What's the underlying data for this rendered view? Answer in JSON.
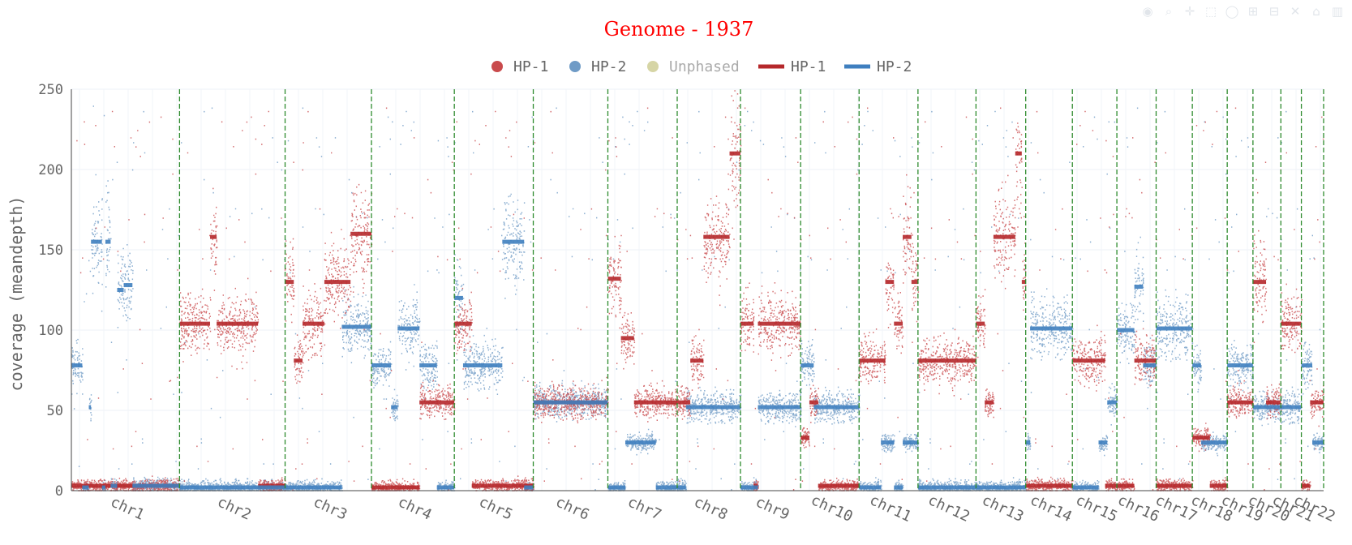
{
  "modebar": {
    "items": [
      {
        "name": "camera-icon",
        "glyph": "◉"
      },
      {
        "name": "zoom-icon",
        "glyph": "⌕"
      },
      {
        "name": "pan-icon",
        "glyph": "✛"
      },
      {
        "name": "box-select-icon",
        "glyph": "⬚"
      },
      {
        "name": "lasso-select-icon",
        "glyph": "◯"
      },
      {
        "name": "zoom-in-icon",
        "glyph": "⊞"
      },
      {
        "name": "zoom-out-icon",
        "glyph": "⊟"
      },
      {
        "name": "autoscale-icon",
        "glyph": "✕"
      },
      {
        "name": "reset-axes-icon",
        "glyph": "⌂"
      },
      {
        "name": "plotly-logo-icon",
        "glyph": "▥"
      }
    ]
  },
  "chart_data": {
    "type": "scatter",
    "title": "Genome - 1937",
    "title_color": "#ff0000",
    "ylabel": "coverage (meandepth)",
    "xlabel": "",
    "ylim": [
      0,
      250
    ],
    "yticks": [
      0,
      50,
      100,
      150,
      200,
      250
    ],
    "grid": true,
    "legend_position": "top-center",
    "legend": [
      {
        "label": "HP-1",
        "kind": "marker",
        "color": "#c94a4c"
      },
      {
        "label": "HP-2",
        "kind": "marker",
        "color": "#6f9bc6"
      },
      {
        "label": "Unphased",
        "kind": "marker",
        "color": "#d6d5a5",
        "muted": true
      },
      {
        "label": "HP-1",
        "kind": "line",
        "color": "#b5282b"
      },
      {
        "label": "HP-2",
        "kind": "line",
        "color": "#3f7fbf"
      }
    ],
    "series_colors": {
      "hp1_points": "#c94a4c",
      "hp2_points": "#6f9bc6",
      "hp1_segments": "#b5282b",
      "hp2_segments": "#3f7fbf",
      "boundary": "#2e8b2e"
    },
    "chromosomes": [
      {
        "name": "chr1",
        "length_mb": 248,
        "hp1": [
          [
            0,
            248,
            3
          ]
        ],
        "hp2": [
          [
            0,
            25,
            78
          ],
          [
            25,
            40,
            2
          ],
          [
            40,
            45,
            52
          ],
          [
            45,
            70,
            155
          ],
          [
            70,
            78,
            2
          ],
          [
            78,
            90,
            155
          ],
          [
            90,
            105,
            3
          ],
          [
            105,
            120,
            125
          ],
          [
            120,
            140,
            128
          ],
          [
            140,
            248,
            3
          ]
        ]
      },
      {
        "name": "chr2",
        "length_mb": 242,
        "hp1": [
          [
            0,
            70,
            104
          ],
          [
            70,
            85,
            158
          ],
          [
            85,
            180,
            104
          ],
          [
            180,
            242,
            3
          ]
        ],
        "hp2": [
          [
            0,
            242,
            2
          ]
        ]
      },
      {
        "name": "chr3",
        "length_mb": 198,
        "hp1": [
          [
            0,
            20,
            130
          ],
          [
            20,
            40,
            81
          ],
          [
            40,
            90,
            104
          ],
          [
            90,
            150,
            130
          ],
          [
            150,
            198,
            160
          ]
        ],
        "hp2": [
          [
            0,
            130,
            2
          ],
          [
            130,
            198,
            102
          ]
        ]
      },
      {
        "name": "chr4",
        "length_mb": 190,
        "hp1": [
          [
            0,
            110,
            2
          ],
          [
            110,
            190,
            55
          ]
        ],
        "hp2": [
          [
            0,
            45,
            78
          ],
          [
            45,
            60,
            52
          ],
          [
            60,
            110,
            101
          ],
          [
            110,
            150,
            78
          ],
          [
            150,
            190,
            2
          ]
        ]
      },
      {
        "name": "chr5",
        "length_mb": 181,
        "hp1": [
          [
            0,
            40,
            104
          ],
          [
            40,
            181,
            3
          ]
        ],
        "hp2": [
          [
            0,
            20,
            120
          ],
          [
            20,
            110,
            78
          ],
          [
            110,
            160,
            155
          ],
          [
            160,
            181,
            2
          ]
        ]
      },
      {
        "name": "chr6",
        "length_mb": 171,
        "hp1": [
          [
            0,
            171,
            55
          ]
        ],
        "hp2": [
          [
            0,
            171,
            55
          ]
        ]
      },
      {
        "name": "chr7",
        "length_mb": 159,
        "hp1": [
          [
            0,
            30,
            132
          ],
          [
            30,
            60,
            95
          ],
          [
            60,
            159,
            55
          ]
        ],
        "hp2": [
          [
            0,
            40,
            2
          ],
          [
            40,
            110,
            30
          ],
          [
            110,
            159,
            2
          ]
        ]
      },
      {
        "name": "chr8",
        "length_mb": 145,
        "hp1": [
          [
            0,
            30,
            55
          ],
          [
            30,
            60,
            81
          ],
          [
            60,
            120,
            158
          ],
          [
            120,
            145,
            210
          ]
        ],
        "hp2": [
          [
            0,
            20,
            2
          ],
          [
            20,
            145,
            52
          ]
        ]
      },
      {
        "name": "chr9",
        "length_mb": 138,
        "hp1": [
          [
            0,
            30,
            104
          ],
          [
            30,
            40,
            3
          ],
          [
            40,
            138,
            104
          ]
        ],
        "hp2": [
          [
            0,
            40,
            2
          ],
          [
            40,
            138,
            52
          ]
        ]
      },
      {
        "name": "chr10",
        "length_mb": 134,
        "hp1": [
          [
            0,
            20,
            33
          ],
          [
            20,
            40,
            55
          ],
          [
            40,
            134,
            3
          ]
        ],
        "hp2": [
          [
            0,
            30,
            78
          ],
          [
            30,
            134,
            52
          ]
        ]
      },
      {
        "name": "chr11",
        "length_mb": 135,
        "hp1": [
          [
            0,
            60,
            81
          ],
          [
            60,
            80,
            130
          ],
          [
            80,
            100,
            104
          ],
          [
            100,
            120,
            158
          ],
          [
            120,
            135,
            130
          ]
        ],
        "hp2": [
          [
            0,
            50,
            2
          ],
          [
            50,
            80,
            30
          ],
          [
            80,
            100,
            2
          ],
          [
            100,
            135,
            30
          ]
        ]
      },
      {
        "name": "chr12",
        "length_mb": 133,
        "hp1": [
          [
            0,
            133,
            81
          ]
        ],
        "hp2": [
          [
            0,
            133,
            2
          ]
        ]
      },
      {
        "name": "chr13",
        "length_mb": 114,
        "hp1": [
          [
            0,
            20,
            104
          ],
          [
            20,
            40,
            55
          ],
          [
            40,
            90,
            158
          ],
          [
            90,
            105,
            210
          ],
          [
            105,
            114,
            130
          ]
        ],
        "hp2": [
          [
            0,
            114,
            2
          ]
        ]
      },
      {
        "name": "chr14",
        "length_mb": 107,
        "hp1": [
          [
            0,
            107,
            3
          ]
        ],
        "hp2": [
          [
            0,
            10,
            30
          ],
          [
            10,
            107,
            101
          ]
        ]
      },
      {
        "name": "chr15",
        "length_mb": 102,
        "hp1": [
          [
            0,
            75,
            81
          ],
          [
            75,
            102,
            3
          ]
        ],
        "hp2": [
          [
            0,
            60,
            2
          ],
          [
            60,
            80,
            30
          ],
          [
            80,
            102,
            55
          ]
        ]
      },
      {
        "name": "chr16",
        "length_mb": 90,
        "hp1": [
          [
            0,
            40,
            3
          ],
          [
            40,
            90,
            81
          ]
        ],
        "hp2": [
          [
            0,
            40,
            100
          ],
          [
            40,
            60,
            127
          ],
          [
            60,
            90,
            78
          ]
        ]
      },
      {
        "name": "chr17",
        "length_mb": 83,
        "hp1": [
          [
            0,
            83,
            3
          ]
        ],
        "hp2": [
          [
            0,
            83,
            101
          ]
        ]
      },
      {
        "name": "chr18",
        "length_mb": 80,
        "hp1": [
          [
            0,
            40,
            33
          ],
          [
            40,
            80,
            3
          ]
        ],
        "hp2": [
          [
            0,
            20,
            78
          ],
          [
            20,
            80,
            30
          ]
        ]
      },
      {
        "name": "chr19",
        "length_mb": 59,
        "hp1": [
          [
            0,
            59,
            55
          ]
        ],
        "hp2": [
          [
            0,
            30,
            78
          ],
          [
            30,
            59,
            78
          ]
        ]
      },
      {
        "name": "chr20",
        "length_mb": 64,
        "hp1": [
          [
            0,
            30,
            130
          ],
          [
            30,
            64,
            55
          ]
        ],
        "hp2": [
          [
            0,
            64,
            52
          ]
        ]
      },
      {
        "name": "chr21",
        "length_mb": 47,
        "hp1": [
          [
            0,
            47,
            104
          ]
        ],
        "hp2": [
          [
            0,
            47,
            52
          ]
        ]
      },
      {
        "name": "chr22",
        "length_mb": 51,
        "hp1": [
          [
            0,
            20,
            3
          ],
          [
            20,
            51,
            55
          ]
        ],
        "hp2": [
          [
            0,
            25,
            78
          ],
          [
            25,
            51,
            30
          ]
        ]
      }
    ]
  }
}
